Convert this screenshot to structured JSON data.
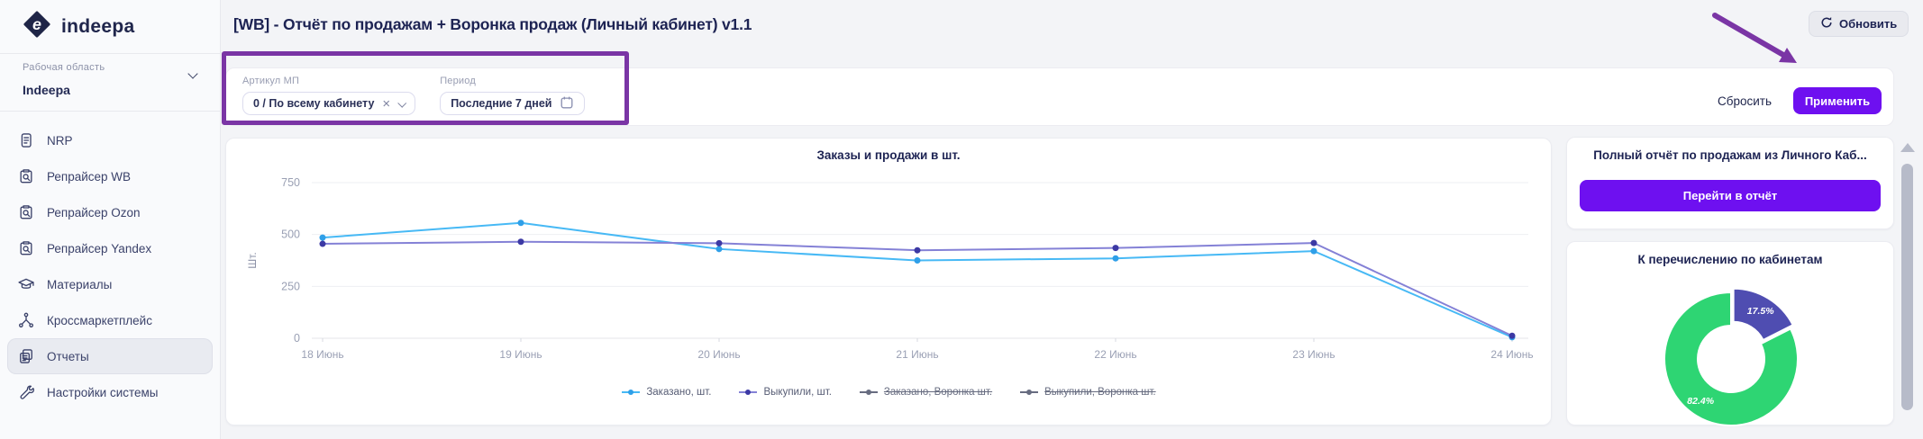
{
  "sidebar": {
    "logo_text": "indeepa",
    "workspace_label": "Рабочая область",
    "workspace_name": "Indeepa",
    "items": [
      {
        "name": "nrp",
        "label": "NRP",
        "icon": "document-icon",
        "active": false
      },
      {
        "name": "repricer-wb",
        "label": "Репрайсер WB",
        "icon": "repricer-icon",
        "active": false
      },
      {
        "name": "repricer-ozon",
        "label": "Репрайсер Ozon",
        "icon": "repricer-icon",
        "active": false
      },
      {
        "name": "repricer-yandex",
        "label": "Репрайсер Yandex",
        "icon": "repricer-icon",
        "active": false
      },
      {
        "name": "materials",
        "label": "Материалы",
        "icon": "graduation-cap-icon",
        "active": false
      },
      {
        "name": "crossmarketplace",
        "label": "Кроссмаркетплейс",
        "icon": "network-icon",
        "active": false
      },
      {
        "name": "reports",
        "label": "Отчеты",
        "icon": "reports-icon",
        "active": true
      },
      {
        "name": "system-settings",
        "label": "Настройки системы",
        "icon": "tools-icon",
        "active": false
      }
    ]
  },
  "header": {
    "title": "[WB] - Отчёт по продажам + Воронка продаж (Личный кабинет) v1.1",
    "refresh_label": "Обновить"
  },
  "filters": {
    "article_label": "Артикул МП",
    "article_value": "0 / По всему кабинету",
    "period_label": "Период",
    "period_value": "Последние 7 дней",
    "reset_label": "Сбросить",
    "apply_label": "Применить"
  },
  "panel": {
    "report_card_title": "Полный отчёт по продажам из Личного Каб...",
    "report_button": "Перейти в отчёт"
  },
  "chart_data": [
    {
      "type": "line",
      "title": "Заказы и продажи в шт.",
      "ylabel": "Шт.",
      "categories": [
        "18 Июнь",
        "19 Июнь",
        "20 Июнь",
        "21 Июнь",
        "22 Июнь",
        "23 Июнь",
        "24 Июнь"
      ],
      "yticks": [
        0,
        250,
        500,
        750
      ],
      "ylim": [
        0,
        750
      ],
      "grid": true,
      "legend_position": "bottom",
      "series": [
        {
          "name": "Заказано, шт.",
          "color": "#47b9f5",
          "dot_color": "#2f9fe8",
          "visible": true,
          "values": [
            485,
            556,
            430,
            375,
            385,
            420,
            5
          ]
        },
        {
          "name": "Выкупили, шт.",
          "color": "#8481d6",
          "dot_color": "#3c39a4",
          "visible": true,
          "values": [
            455,
            465,
            458,
            424,
            435,
            459,
            12
          ]
        },
        {
          "name": "Заказано, Воронка шт.",
          "color": "#676c80",
          "visible": false,
          "values": []
        },
        {
          "name": "Выкупили, Воронка шт.",
          "color": "#676c80",
          "visible": false,
          "values": []
        }
      ]
    },
    {
      "type": "pie",
      "title": "К перечислению по кабинетам",
      "slices": [
        {
          "label": "17.5%",
          "value": 17.5,
          "color": "#4f4db1",
          "explode": 5
        },
        {
          "label": "82.4%",
          "value": 82.4,
          "color": "#2ed573",
          "explode": 0,
          "label_angle": 216
        }
      ]
    }
  ],
  "colors": {
    "accent_purple": "#6e10f0",
    "annotation_purple": "#7a35a5",
    "line_blue": "#47b9f5",
    "line_indigo": "#3c39a4",
    "donut_green": "#2ed573",
    "donut_purple": "#4f4db1"
  }
}
